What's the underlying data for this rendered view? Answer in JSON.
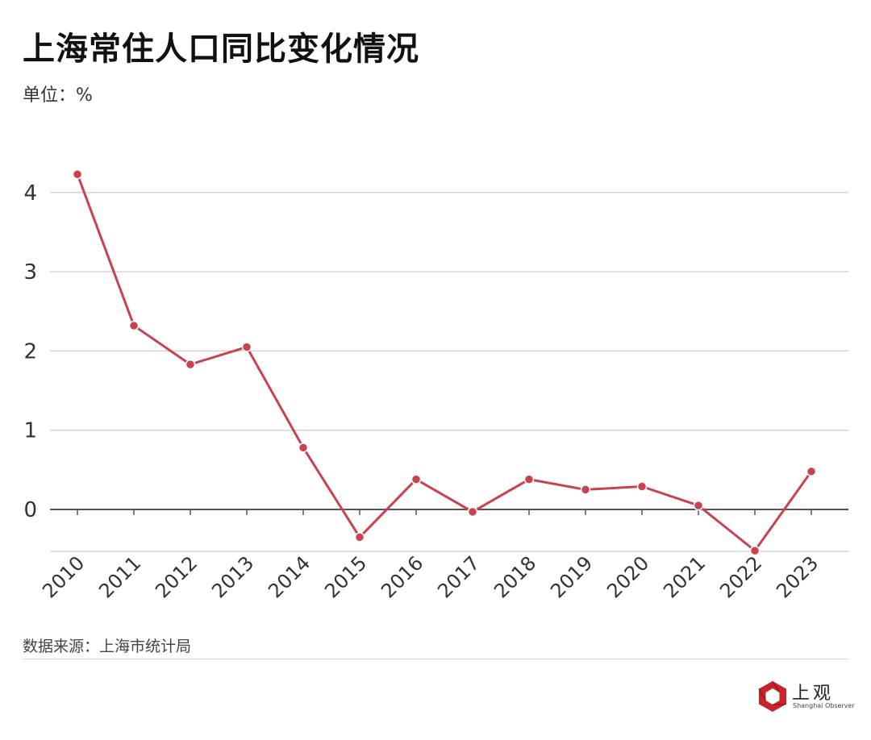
{
  "header": {
    "title": "上海常住人口同比变化情况",
    "unit": "单位：%"
  },
  "footer": {
    "source": "数据来源：上海市统计局",
    "logo_text": "上观",
    "logo_sub": "Shanghai Observer"
  },
  "colors": {
    "line": "#c9424e",
    "grid": "#d4d4d4",
    "axis": "#555555",
    "logo": "#c8232c"
  },
  "chart_data": {
    "type": "line",
    "title": "上海常住人口同比变化情况",
    "subtitle": "单位：%",
    "xlabel": "",
    "ylabel": "%",
    "categories": [
      "2010",
      "2011",
      "2012",
      "2013",
      "2014",
      "2015",
      "2016",
      "2017",
      "2018",
      "2019",
      "2020",
      "2021",
      "2022",
      "2023"
    ],
    "series": [
      {
        "name": "上海常住人口同比变化",
        "values": [
          4.23,
          2.32,
          1.83,
          2.05,
          0.78,
          -0.35,
          0.38,
          -0.03,
          0.38,
          0.25,
          0.29,
          0.05,
          -0.52,
          0.48
        ]
      }
    ],
    "yticks": [
      0,
      1,
      2,
      3,
      4
    ],
    "ylim": [
      -0.53,
      4.3
    ],
    "grid": true,
    "legend": "none",
    "source": "数据来源：上海市统计局"
  }
}
